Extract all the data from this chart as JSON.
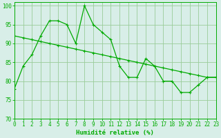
{
  "x": [
    0,
    1,
    2,
    3,
    4,
    5,
    6,
    7,
    8,
    9,
    10,
    11,
    12,
    13,
    14,
    15,
    16,
    17,
    18,
    19,
    20,
    21,
    22,
    23
  ],
  "y_main": [
    78,
    84,
    87,
    92,
    96,
    96,
    95,
    90,
    100,
    95,
    93,
    91,
    84,
    81,
    81,
    86,
    84,
    80,
    80,
    77,
    77,
    79,
    81,
    81
  ],
  "y_trend": [
    92,
    91.5,
    91,
    90.5,
    90,
    89.5,
    89,
    88.5,
    88,
    87.5,
    87,
    86.5,
    86,
    85.5,
    85,
    84.5,
    84,
    83.5,
    83,
    82.5,
    82,
    81.5,
    81,
    81
  ],
  "line_color": "#00aa00",
  "bg_color": "#d8eee8",
  "grid_color": "#99cc99",
  "xlabel": "Humidité relative (%)",
  "xlim": [
    0,
    23
  ],
  "ylim": [
    70,
    101
  ],
  "yticks": [
    70,
    75,
    80,
    85,
    90,
    95,
    100
  ],
  "xticks": [
    0,
    1,
    2,
    3,
    4,
    5,
    6,
    7,
    8,
    9,
    10,
    11,
    12,
    13,
    14,
    15,
    16,
    17,
    18,
    19,
    20,
    21,
    22,
    23
  ]
}
